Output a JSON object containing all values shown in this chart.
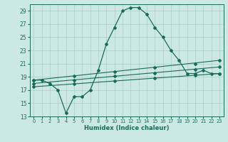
{
  "xlabel": "Humidex (Indice chaleur)",
  "background_color": "#cce8e4",
  "grid_color": "#aacfca",
  "line_color": "#1a6b5a",
  "xlim": [
    -0.5,
    23.5
  ],
  "ylim": [
    13,
    30
  ],
  "xticks": [
    0,
    1,
    2,
    3,
    4,
    5,
    6,
    7,
    8,
    9,
    10,
    11,
    12,
    13,
    14,
    15,
    16,
    17,
    18,
    19,
    20,
    21,
    22,
    23
  ],
  "yticks": [
    13,
    15,
    17,
    19,
    21,
    23,
    25,
    27,
    29
  ],
  "series1_x": [
    0,
    1,
    2,
    3,
    4,
    5,
    6,
    7,
    8,
    9,
    10,
    11,
    12,
    13,
    14,
    15,
    16,
    17,
    18,
    19,
    20,
    21,
    22,
    23
  ],
  "series1_y": [
    18.5,
    18.5,
    18.0,
    17.0,
    13.5,
    16.0,
    16.0,
    17.0,
    20.0,
    24.0,
    26.5,
    29.0,
    29.5,
    29.5,
    28.5,
    26.5,
    25.0,
    23.0,
    21.5,
    19.5,
    19.5,
    20.0,
    19.5,
    19.5
  ],
  "series2_x": [
    0,
    23
  ],
  "series2_y": [
    18.5,
    21.5
  ],
  "series3_x": [
    0,
    23
  ],
  "series3_y": [
    18.0,
    20.5
  ],
  "series4_x": [
    0,
    23
  ],
  "series4_y": [
    17.5,
    19.5
  ],
  "series2_markers_x": [
    0,
    5,
    10,
    15,
    20,
    23
  ],
  "series2_markers_y": [
    18.5,
    19.1,
    19.8,
    20.4,
    21.0,
    21.5
  ],
  "series3_markers_x": [
    0,
    5,
    10,
    15,
    20,
    23
  ],
  "series3_markers_y": [
    18.0,
    18.5,
    19.1,
    19.6,
    20.1,
    20.5
  ],
  "series4_markers_x": [
    0,
    5,
    10,
    15,
    20,
    23
  ],
  "series4_markers_y": [
    17.5,
    17.9,
    18.4,
    18.8,
    19.2,
    19.5
  ]
}
